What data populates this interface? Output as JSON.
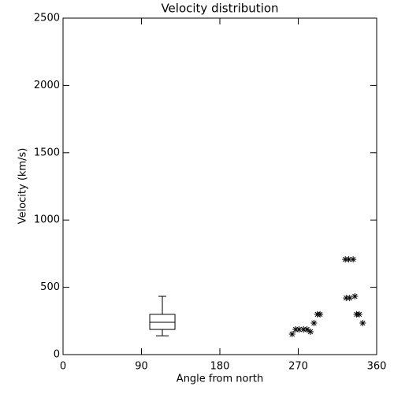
{
  "chart_data": {
    "type": "scatter",
    "title": "Velocity distribution",
    "x_label": "Angle from north",
    "y_label": "Velocity (km/s)",
    "xlim": [
      0,
      360
    ],
    "xticks": [
      0,
      90,
      180,
      270,
      360
    ],
    "ylim": [
      0,
      2500
    ],
    "yticks": [
      0,
      500,
      1000,
      1500,
      2000,
      2500
    ],
    "color": "#000000",
    "marker": "asterisk",
    "x": [
      263,
      267,
      271,
      276,
      280,
      284,
      288,
      292,
      295,
      324,
      328,
      333,
      325,
      329,
      335,
      337,
      340,
      344
    ],
    "values": [
      152,
      187,
      187,
      187,
      187,
      170,
      234,
      299,
      299,
      708,
      708,
      708,
      421,
      421,
      433,
      299,
      299,
      234
    ],
    "boxes": [
      {
        "x": 114,
        "whisker_low": 140,
        "q1": 187,
        "median": 240,
        "q3": 299,
        "whisker_high": 433
      }
    ]
  }
}
